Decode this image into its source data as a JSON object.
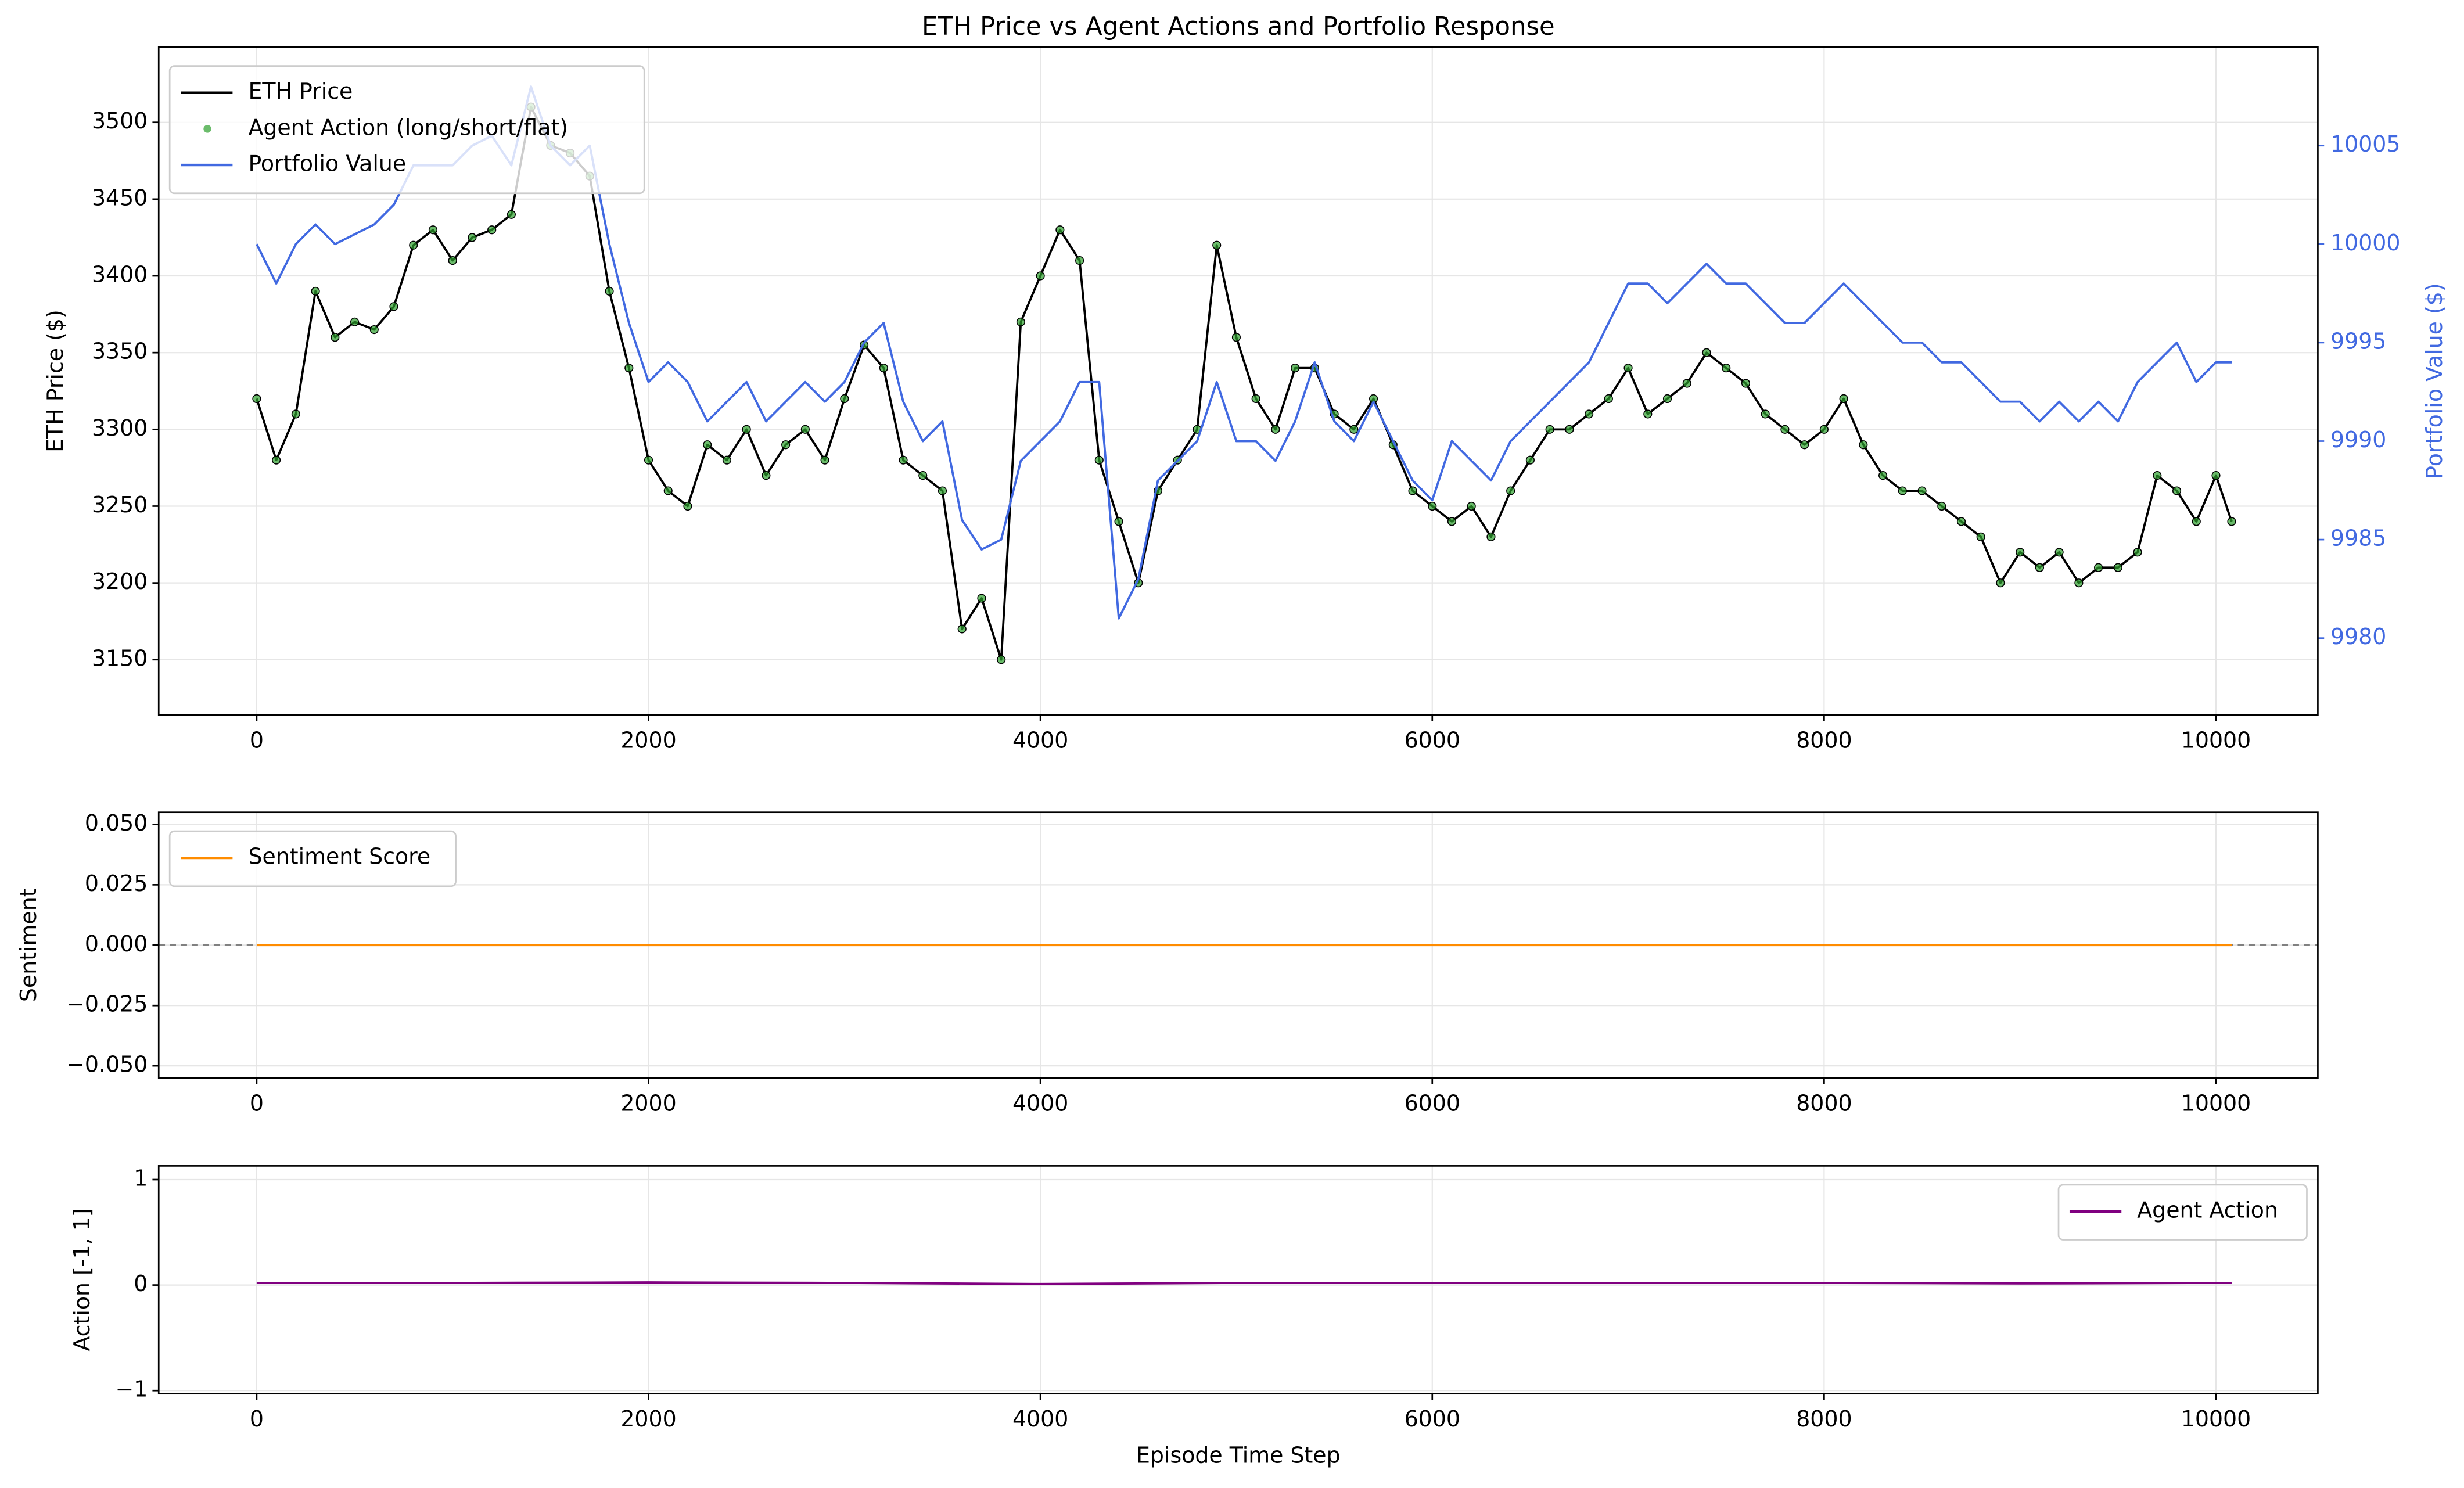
{
  "chart_data": [
    {
      "type": "line",
      "title": "ETH Price vs Agent Actions and Portfolio Response",
      "ylabel": "ETH Price ($)",
      "y2label": "Portfolio Value ($)",
      "xlim": [
        -500,
        10520
      ],
      "xticks": [
        0,
        2000,
        4000,
        6000,
        8000,
        10000
      ],
      "ylim": [
        3114,
        3549
      ],
      "yticks": [
        3150,
        3200,
        3250,
        3300,
        3350,
        3400,
        3450,
        3500
      ],
      "y2lim": [
        9976.1,
        10010
      ],
      "y2ticks": [
        9980,
        9985,
        9990,
        9995,
        10000,
        10005
      ],
      "grid": true,
      "legend": "upper left",
      "x": [
        0,
        100,
        200,
        300,
        400,
        500,
        600,
        700,
        800,
        900,
        1000,
        1100,
        1200,
        1300,
        1400,
        1500,
        1600,
        1700,
        1800,
        1900,
        2000,
        2100,
        2200,
        2300,
        2400,
        2500,
        2600,
        2700,
        2800,
        2900,
        3000,
        3100,
        3200,
        3300,
        3400,
        3500,
        3600,
        3700,
        3800,
        3900,
        4000,
        4100,
        4200,
        4300,
        4400,
        4500,
        4600,
        4700,
        4800,
        4900,
        5000,
        5100,
        5200,
        5300,
        5400,
        5500,
        5600,
        5700,
        5800,
        5900,
        6000,
        6100,
        6200,
        6300,
        6400,
        6500,
        6600,
        6700,
        6800,
        6900,
        7000,
        7100,
        7200,
        7300,
        7400,
        7500,
        7600,
        7700,
        7800,
        7900,
        8000,
        8100,
        8200,
        8300,
        8400,
        8500,
        8600,
        8700,
        8800,
        8900,
        9000,
        9100,
        9200,
        9300,
        9400,
        9500,
        9600,
        9700,
        9800,
        9900,
        10000,
        10080
      ],
      "series": [
        {
          "name": "ETH Price",
          "color": "#000000",
          "kind": "line",
          "values": [
            3320,
            3280,
            3310,
            3390,
            3360,
            3370,
            3365,
            3380,
            3420,
            3430,
            3410,
            3425,
            3430,
            3440,
            3510,
            3485,
            3480,
            3465,
            3390,
            3340,
            3280,
            3260,
            3250,
            3290,
            3280,
            3300,
            3270,
            3290,
            3300,
            3280,
            3320,
            3355,
            3340,
            3280,
            3270,
            3260,
            3170,
            3190,
            3150,
            3370,
            3400,
            3430,
            3410,
            3280,
            3240,
            3200,
            3260,
            3280,
            3300,
            3420,
            3360,
            3320,
            3300,
            3340,
            3340,
            3310,
            3300,
            3320,
            3290,
            3260,
            3250,
            3240,
            3250,
            3230,
            3260,
            3280,
            3300,
            3300,
            3310,
            3320,
            3340,
            3310,
            3320,
            3330,
            3350,
            3340,
            3330,
            3310,
            3300,
            3290,
            3300,
            3320,
            3290,
            3270,
            3260,
            3260,
            3250,
            3240,
            3230,
            3200,
            3220,
            3210,
            3220,
            3200,
            3210,
            3210,
            3220,
            3270,
            3260,
            3240,
            3270,
            3240
          ]
        },
        {
          "name": "Agent Action (long/short/flat)",
          "color": "#2ca02c",
          "kind": "scatter",
          "values": [
            3320,
            3280,
            3310,
            3390,
            3360,
            3370,
            3365,
            3380,
            3420,
            3430,
            3410,
            3425,
            3430,
            3440,
            3510,
            3485,
            3480,
            3465,
            3390,
            3340,
            3280,
            3260,
            3250,
            3290,
            3280,
            3300,
            3270,
            3290,
            3300,
            3280,
            3320,
            3355,
            3340,
            3280,
            3270,
            3260,
            3170,
            3190,
            3150,
            3370,
            3400,
            3430,
            3410,
            3280,
            3240,
            3200,
            3260,
            3280,
            3300,
            3420,
            3360,
            3320,
            3300,
            3340,
            3340,
            3310,
            3300,
            3320,
            3290,
            3260,
            3250,
            3240,
            3250,
            3230,
            3260,
            3280,
            3300,
            3300,
            3310,
            3320,
            3340,
            3310,
            3320,
            3330,
            3350,
            3340,
            3330,
            3310,
            3300,
            3290,
            3300,
            3320,
            3290,
            3270,
            3260,
            3260,
            3250,
            3240,
            3230,
            3200,
            3220,
            3210,
            3220,
            3200,
            3210,
            3210,
            3220,
            3270,
            3260,
            3240,
            3270,
            3240
          ]
        },
        {
          "name": "Portfolio Value",
          "color": "#4169e1",
          "kind": "line",
          "axis": "y2",
          "values": [
            10000,
            9998,
            10000,
            10001,
            10000,
            10000.5,
            10001,
            10002,
            10004,
            10004,
            10004,
            10005,
            10005.5,
            10004,
            10008,
            10005,
            10004,
            10005,
            10000,
            9996,
            9993,
            9994,
            9993,
            9991,
            9992,
            9993,
            9991,
            9992,
            9993,
            9992,
            9993,
            9995,
            9996,
            9992,
            9990,
            9991,
            9986,
            9984.5,
            9985,
            9989,
            9990,
            9991,
            9993,
            9993,
            9981,
            9983,
            9988,
            9989,
            9990,
            9993,
            9990,
            9990,
            9989,
            9991,
            9994,
            9991,
            9990,
            9992,
            9990,
            9988,
            9987,
            9990,
            9989,
            9988,
            9990,
            9991,
            9992,
            9993,
            9994,
            9996,
            9998,
            9998,
            9997,
            9998,
            9999,
            9998,
            9998,
            9997,
            9996,
            9996,
            9997,
            9998,
            9997,
            9996,
            9995,
            9995,
            9994,
            9994,
            9993,
            9992,
            9992,
            9991,
            9992,
            9991,
            9992,
            9991,
            9993,
            9994,
            9995,
            9993,
            9994,
            9994
          ]
        }
      ]
    },
    {
      "type": "line",
      "ylabel": "Sentiment",
      "xlim": [
        -500,
        10520
      ],
      "xticks": [
        0,
        2000,
        4000,
        6000,
        8000,
        10000
      ],
      "ylim": [
        -0.055,
        0.055
      ],
      "yticks": [
        {
          "value": -0.05,
          "label": "−0.050"
        },
        {
          "value": -0.025,
          "label": "−0.025"
        },
        {
          "value": 0,
          "label": "0.000"
        },
        {
          "value": 0.025,
          "label": "0.025"
        },
        {
          "value": 0.05,
          "label": "0.050"
        }
      ],
      "grid": true,
      "legend": "upper left",
      "hline": 0,
      "x": [
        0,
        10080
      ],
      "series": [
        {
          "name": "Sentiment Score",
          "color": "#ff8c00",
          "kind": "line",
          "values": [
            0,
            0
          ]
        }
      ]
    },
    {
      "type": "line",
      "ylabel": "Action [-1, 1]",
      "xlabel": "Episode Time Step",
      "xlim": [
        -500,
        10520
      ],
      "xticks": [
        0,
        2000,
        4000,
        6000,
        8000,
        10000
      ],
      "ylim": [
        -1.03,
        1.13
      ],
      "yticks": [
        {
          "value": -1,
          "label": "−1"
        },
        0,
        1
      ],
      "grid": true,
      "legend": "upper right",
      "x": [
        0,
        1000,
        2000,
        3000,
        4000,
        5000,
        6000,
        7000,
        8000,
        9000,
        10080
      ],
      "series": [
        {
          "name": "Agent Action",
          "color": "#800080",
          "kind": "line",
          "values": [
            0.02,
            0.02,
            0.025,
            0.02,
            0.01,
            0.02,
            0.02,
            0.02,
            0.02,
            0.015,
            0.02
          ]
        }
      ]
    }
  ]
}
